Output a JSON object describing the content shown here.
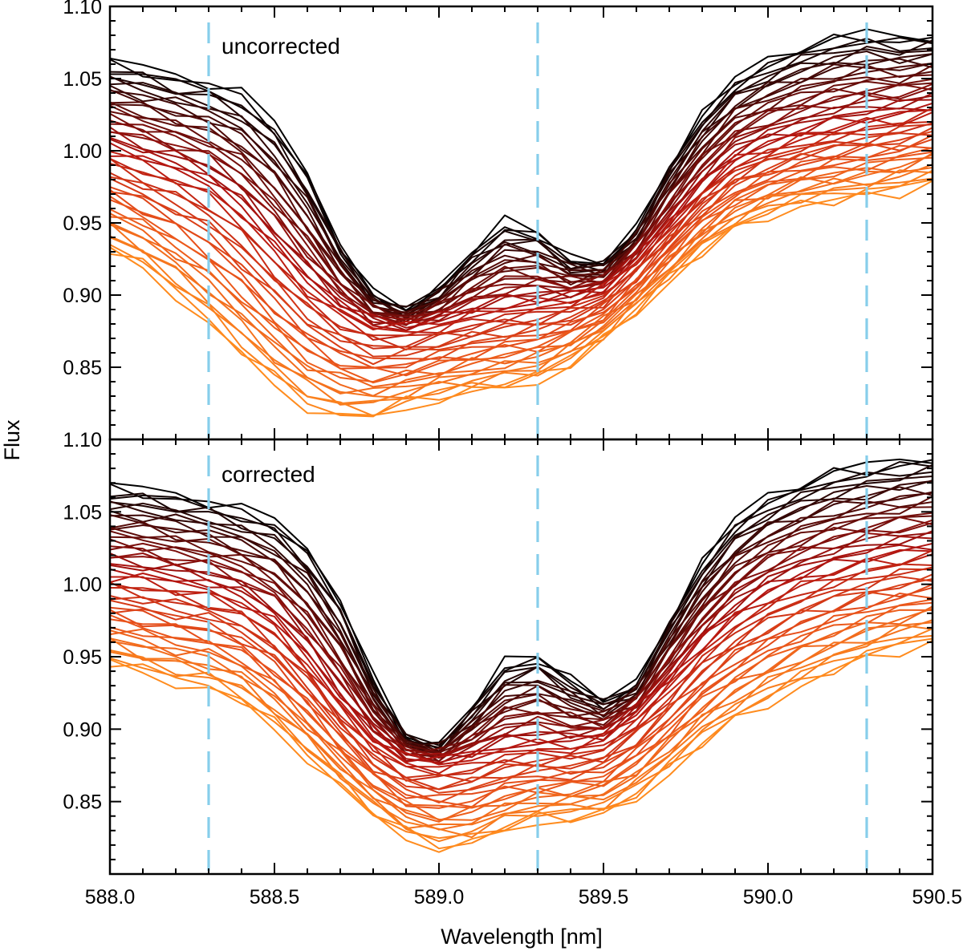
{
  "chart_data": {
    "type": "line",
    "xlabel": "Wavelength [nm]",
    "ylabel": "Flux",
    "xlim": [
      588.0,
      590.5
    ],
    "x_ticks": [
      "588.0",
      "588.5",
      "589.0",
      "589.5",
      "590.0",
      "590.5"
    ],
    "x_tick_values": [
      588.0,
      588.5,
      589.0,
      589.5,
      590.0,
      590.5
    ],
    "x_minor_step": 0.1,
    "y_minor_step": 0.01,
    "reference_lines": {
      "wavelengths": [
        588.3,
        589.3,
        590.3
      ],
      "color": "#87ceeb",
      "style": "dashed"
    },
    "colormap": [
      "#000000",
      "#5a0b08",
      "#b41410",
      "#e8501a",
      "#ff8c1e"
    ],
    "x_grid": [
      588.0,
      588.1,
      588.2,
      588.3,
      588.4,
      588.5,
      588.6,
      588.7,
      588.8,
      588.9,
      589.0,
      589.1,
      589.2,
      589.3,
      589.4,
      589.5,
      589.6,
      589.7,
      589.8,
      589.9,
      590.0,
      590.1,
      590.2,
      590.3,
      590.4,
      590.5
    ],
    "panels": [
      {
        "label": "uncorrected",
        "ylim": [
          0.8,
          1.1
        ],
        "y_ticks": [
          "0.85",
          "0.90",
          "0.95",
          "1.00",
          "1.05",
          "1.10"
        ],
        "y_tick_values": [
          0.85,
          0.9,
          0.95,
          1.0,
          1.05,
          1.1
        ],
        "n_spectra": 48,
        "series": [
          {
            "name": "top envelope (black)",
            "values": [
              1.062,
              1.058,
              1.052,
              1.048,
              1.04,
              1.02,
              0.985,
              0.935,
              0.9,
              0.89,
              0.905,
              0.93,
              0.95,
              0.945,
              0.925,
              0.922,
              0.945,
              0.99,
              1.025,
              1.05,
              1.062,
              1.072,
              1.078,
              1.082,
              1.078,
              1.08
            ]
          },
          {
            "name": "middle (red)",
            "values": [
              1.003,
              0.995,
              0.988,
              0.978,
              0.96,
              0.935,
              0.91,
              0.892,
              0.88,
              0.878,
              0.882,
              0.888,
              0.892,
              0.895,
              0.898,
              0.905,
              0.925,
              0.95,
              0.975,
              0.995,
              1.005,
              1.012,
              1.018,
              1.022,
              1.025,
              1.03
            ]
          },
          {
            "name": "bottom envelope (orange)",
            "values": [
              0.93,
              0.918,
              0.9,
              0.88,
              0.858,
              0.838,
              0.822,
              0.815,
              0.815,
              0.822,
              0.828,
              0.832,
              0.836,
              0.84,
              0.852,
              0.868,
              0.888,
              0.91,
              0.93,
              0.945,
              0.955,
              0.962,
              0.965,
              0.968,
              0.972,
              0.978
            ]
          }
        ]
      },
      {
        "label": "corrected",
        "ylim": [
          0.8,
          1.1
        ],
        "y_ticks": [
          "0.85",
          "0.90",
          "0.95",
          "1.00",
          "1.05",
          "1.10"
        ],
        "y_tick_values": [
          0.85,
          0.9,
          0.95,
          1.0,
          1.05,
          1.1
        ],
        "n_spectra": 48,
        "series": [
          {
            "name": "top envelope (black)",
            "values": [
              1.068,
              1.066,
              1.062,
              1.058,
              1.052,
              1.045,
              1.025,
              0.99,
              0.935,
              0.895,
              0.888,
              0.915,
              0.945,
              0.952,
              0.935,
              0.92,
              0.93,
              0.975,
              1.015,
              1.045,
              1.06,
              1.07,
              1.078,
              1.082,
              1.085,
              1.088
            ]
          },
          {
            "name": "middle (red)",
            "values": [
              1.008,
              1.006,
              1.002,
              0.998,
              0.99,
              0.975,
              0.95,
              0.92,
              0.895,
              0.88,
              0.878,
              0.882,
              0.888,
              0.89,
              0.89,
              0.895,
              0.912,
              0.935,
              0.96,
              0.98,
              0.995,
              1.005,
              1.012,
              1.018,
              1.022,
              1.025
            ]
          },
          {
            "name": "bottom envelope (orange)",
            "values": [
              0.945,
              0.938,
              0.932,
              0.928,
              0.918,
              0.9,
              0.88,
              0.86,
              0.84,
              0.825,
              0.818,
              0.82,
              0.83,
              0.836,
              0.838,
              0.84,
              0.852,
              0.87,
              0.89,
              0.905,
              0.918,
              0.93,
              0.94,
              0.948,
              0.955,
              0.96
            ]
          }
        ]
      }
    ]
  }
}
